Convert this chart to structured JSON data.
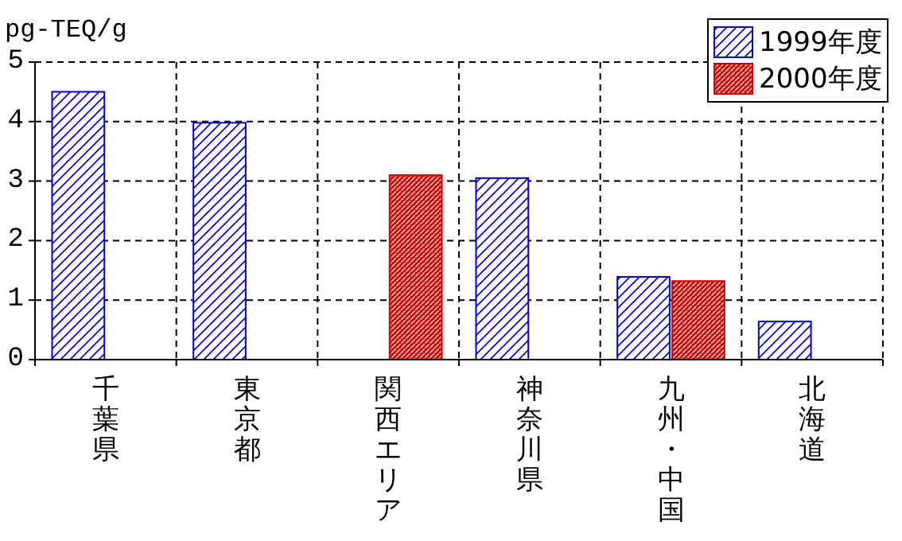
{
  "chart_data": {
    "type": "bar",
    "ylabel": "pg-TEQ/g",
    "categories": [
      "千葉県",
      "東京都",
      "関西エリア",
      "神奈川県",
      "九州・中国",
      "北海道"
    ],
    "series": [
      {
        "name": "1999年度",
        "color": "#0000cc",
        "values": [
          4.5,
          3.98,
          null,
          3.05,
          1.39,
          0.64
        ]
      },
      {
        "name": "2000年度",
        "color": "#cc0000",
        "values": [
          null,
          null,
          3.1,
          null,
          1.32,
          null
        ]
      }
    ],
    "ylim": [
      0,
      5
    ],
    "yticks": [
      0,
      1,
      2,
      3,
      4,
      5
    ],
    "grid": true,
    "legend": "top right"
  }
}
